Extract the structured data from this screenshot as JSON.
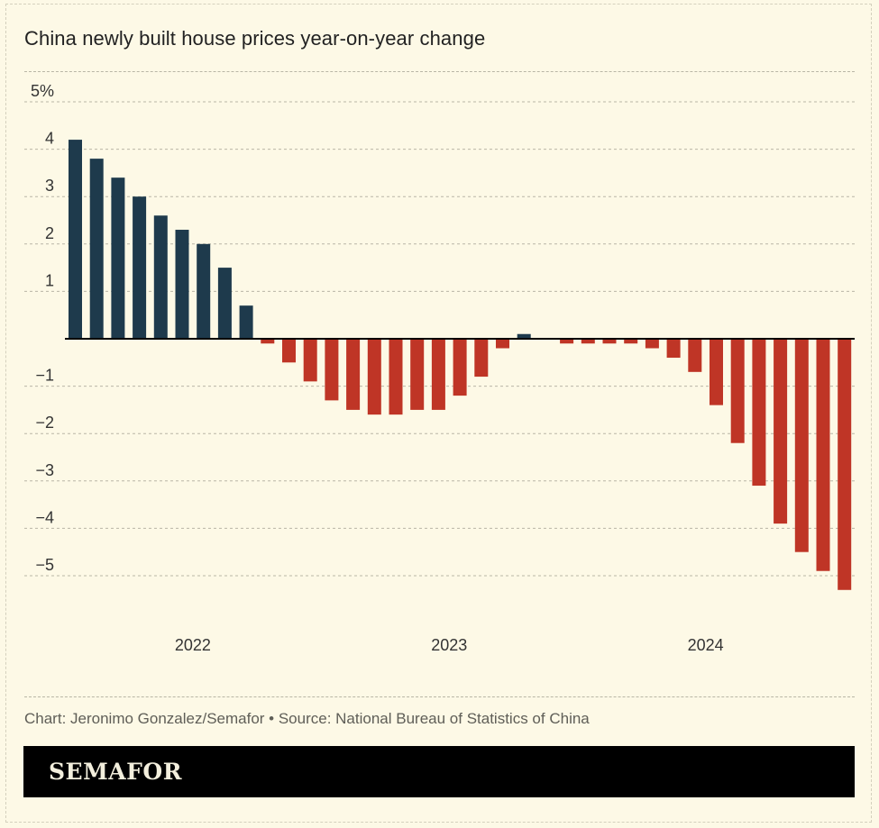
{
  "chart_data": {
    "type": "bar",
    "title": "China newly built house prices year-on-year change",
    "y_tick_labels": [
      {
        "value": 5,
        "label": "5%"
      },
      {
        "value": 4,
        "label": "4"
      },
      {
        "value": 3,
        "label": "3"
      },
      {
        "value": 2,
        "label": "2"
      },
      {
        "value": 1,
        "label": "1"
      },
      {
        "value": -1,
        "label": "−1"
      },
      {
        "value": -2,
        "label": "−2"
      },
      {
        "value": -3,
        "label": "−3"
      },
      {
        "value": -4,
        "label": "−4"
      },
      {
        "value": -5,
        "label": "−5"
      }
    ],
    "ylim": [
      -5.7,
      5.2
    ],
    "x_tick_labels": [
      {
        "label": "2022",
        "at_bar": 5.5
      },
      {
        "label": "2023",
        "at_bar": 17.5
      },
      {
        "label": "2024",
        "at_bar": 29.5
      }
    ],
    "values": [
      4.2,
      3.8,
      3.4,
      3.0,
      2.6,
      2.3,
      2.0,
      1.5,
      0.7,
      -0.1,
      -0.5,
      -0.9,
      -1.3,
      -1.5,
      -1.6,
      -1.6,
      -1.5,
      -1.5,
      -1.2,
      -0.8,
      -0.2,
      0.1,
      0.0,
      -0.1,
      -0.1,
      -0.1,
      -0.1,
      -0.2,
      -0.4,
      -0.7,
      -1.4,
      -2.2,
      -3.1,
      -3.9,
      -4.5,
      -4.9,
      -5.3
    ],
    "colors": {
      "positive": "#1e3a4c",
      "negative": "#bf3526",
      "gridline": "#b9b6a6",
      "baseline": "#000000"
    },
    "grid": true
  },
  "footer": {
    "source": "Chart: Jeronimo Gonzalez/Semafor • Source: National Bureau of Statistics of China",
    "brand": "SEMAFOR"
  }
}
